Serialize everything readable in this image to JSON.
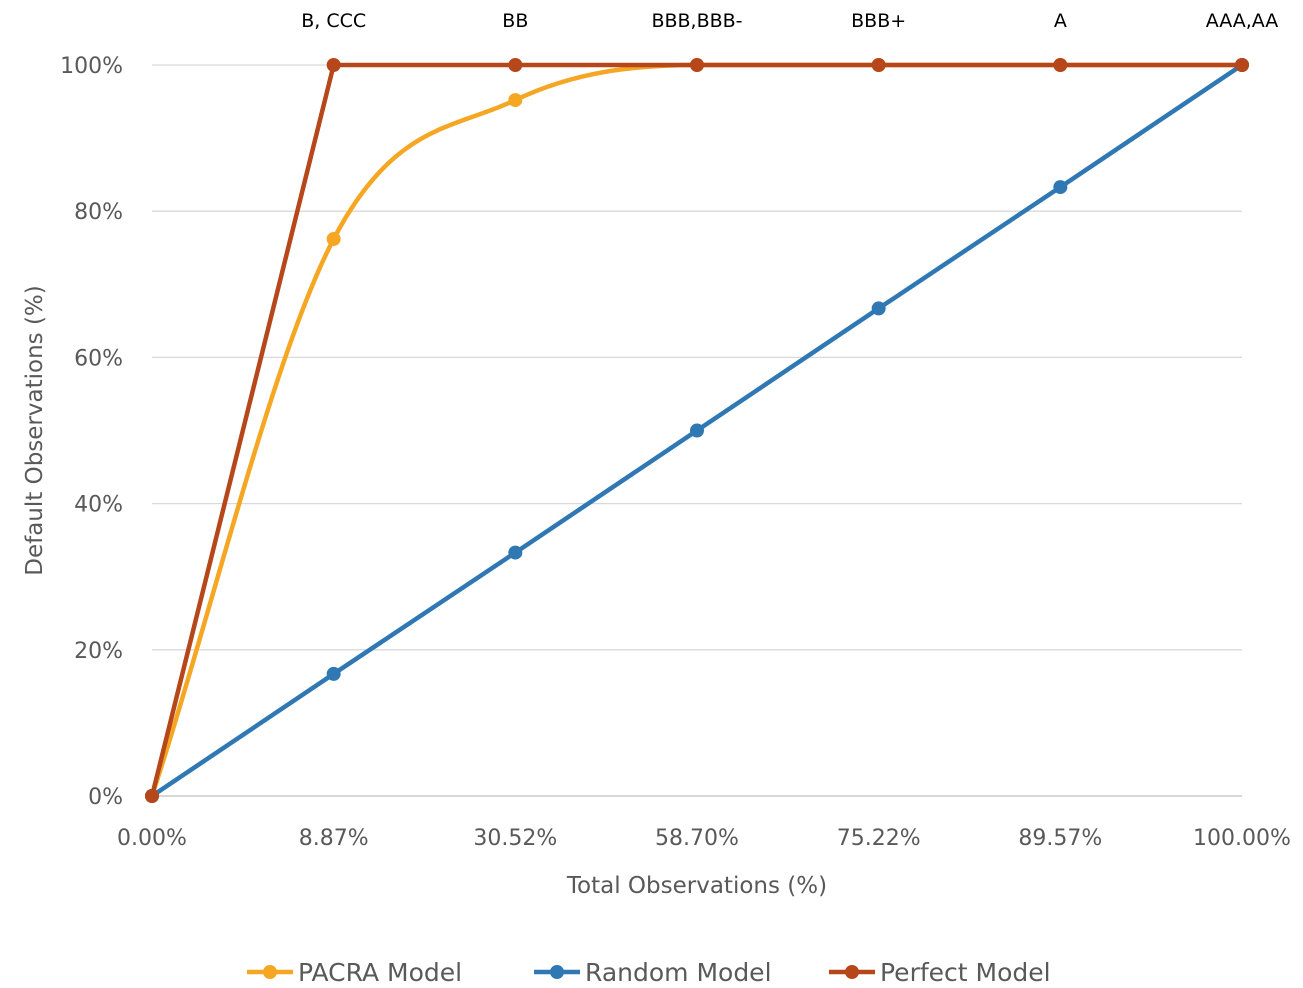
{
  "chart_data": {
    "type": "line",
    "title": "",
    "xlabel": "Total Observations (%)",
    "ylabel": "Default Observations (%)",
    "categories": [
      "0.00%",
      "8.87%",
      "30.52%",
      "58.70%",
      "75.22%",
      "89.57%",
      "100.00%"
    ],
    "rating_labels": [
      "",
      "B, CCC",
      "BB",
      "BBB,BBB-",
      "BBB+",
      "A",
      "AAA,AA"
    ],
    "y_ticks": [
      "0%",
      "20%",
      "40%",
      "60%",
      "80%",
      "100%"
    ],
    "ylim": [
      0,
      100
    ],
    "grid": true,
    "legend_position": "bottom",
    "series": [
      {
        "name": "PACRA Model",
        "values": [
          0,
          76.2,
          95.2,
          100,
          100,
          100,
          100
        ],
        "color": "#f5a623",
        "smooth": true
      },
      {
        "name": "Random Model",
        "values": [
          0,
          16.7,
          33.3,
          50,
          66.7,
          83.3,
          100
        ],
        "color": "#2f78b4",
        "smooth": false
      },
      {
        "name": "Perfect Model",
        "values": [
          0,
          100,
          100,
          100,
          100,
          100,
          100
        ],
        "color": "#b5471b",
        "smooth": false
      }
    ]
  }
}
